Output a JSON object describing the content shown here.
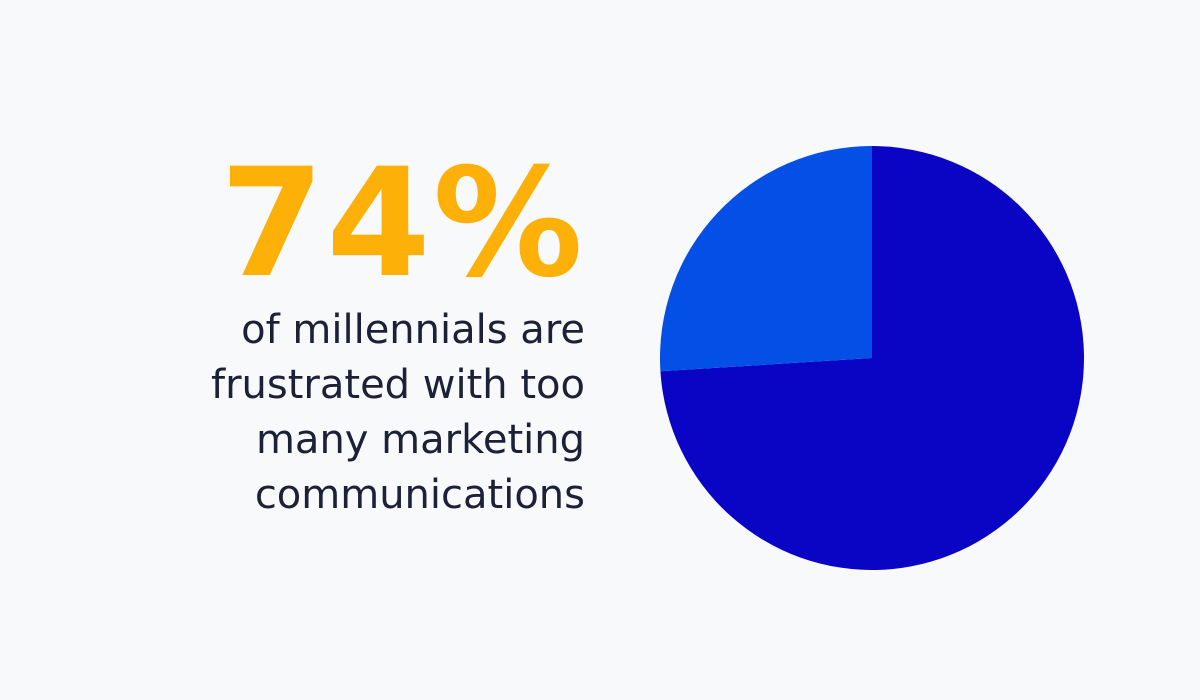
{
  "chart_data": {
    "type": "pie",
    "headline": "74%",
    "text_lines": [
      "of millennials are",
      "frustrated with too",
      "many marketing",
      "communications"
    ],
    "values": [
      74,
      26
    ],
    "colors": [
      "#0a04c4",
      "#0450e6"
    ],
    "headline_color": "#fdb007",
    "text_color": "#1c2137",
    "background": "#f7f9fb"
  }
}
